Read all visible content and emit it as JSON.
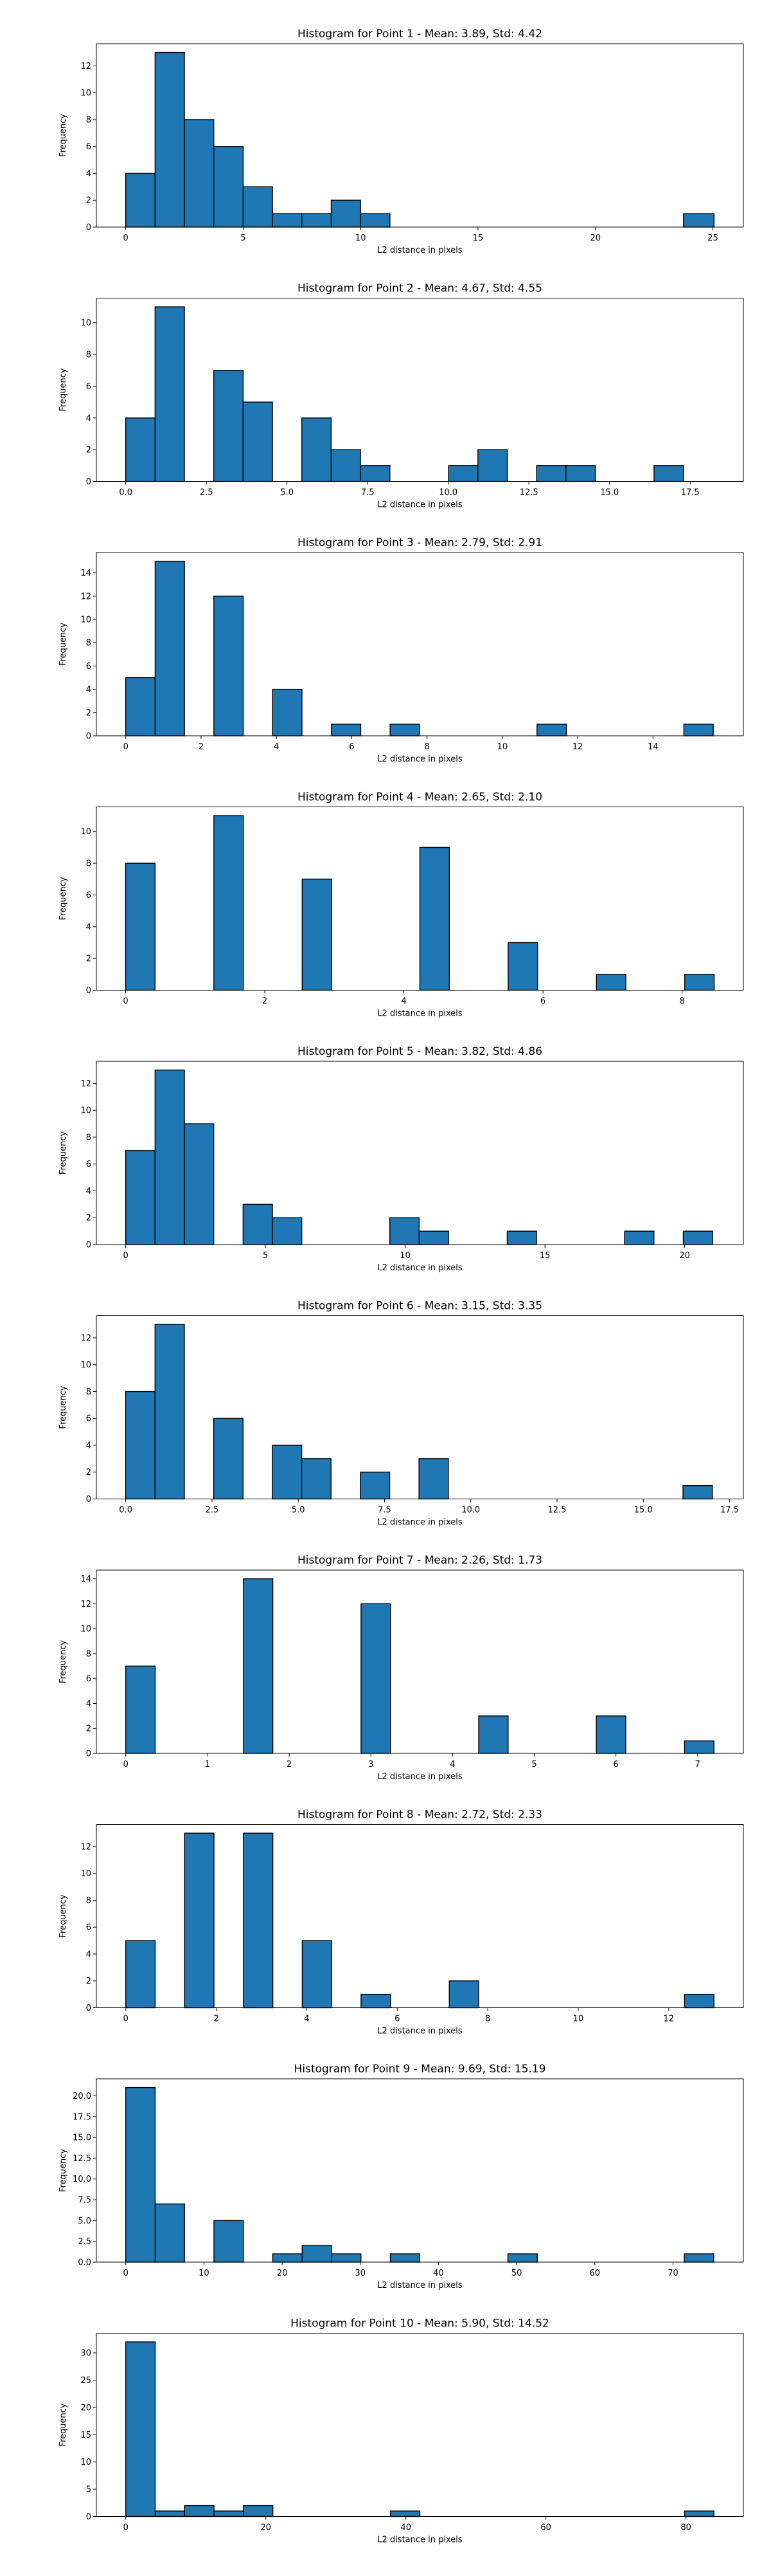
{
  "page": {
    "background": "#ffffff"
  },
  "chart_data": [
    {
      "type": "bar",
      "title": "Histogram for Point 1 - Mean: 3.89, Std: 4.42",
      "xlabel": "L2 distance in pixels",
      "ylabel": "Frequency",
      "bar_color": "#1f77b4",
      "xlim": [
        -1.25,
        26.3
      ],
      "ylim": [
        0,
        13.65
      ],
      "x_ticks": [
        0,
        5,
        10,
        15,
        20,
        25
      ],
      "y_ticks": [
        0,
        2,
        4,
        6,
        8,
        10,
        12
      ],
      "bin_edges": [
        0,
        1.25,
        2.5,
        3.75,
        5,
        6.25,
        7.5,
        8.75,
        10,
        11.25,
        12.5,
        13.75,
        15,
        16.25,
        17.5,
        18.75,
        20,
        21.25,
        22.5,
        23.75,
        25.05
      ],
      "values": [
        4,
        13,
        8,
        6,
        3,
        1,
        1,
        2,
        1,
        0,
        0,
        0,
        0,
        0,
        0,
        0,
        0,
        0,
        0,
        1
      ]
    },
    {
      "type": "bar",
      "title": "Histogram for Point 2 - Mean: 4.67, Std: 4.55",
      "xlabel": "L2 distance in pixels",
      "ylabel": "Frequency",
      "bar_color": "#1f77b4",
      "xlim": [
        -0.91,
        19.15
      ],
      "ylim": [
        0,
        11.55
      ],
      "x_ticks": [
        0.0,
        2.5,
        5.0,
        7.5,
        10.0,
        12.5,
        15.0,
        17.5
      ],
      "y_ticks": [
        0,
        2,
        4,
        6,
        8,
        10
      ],
      "bin_edges": [
        0,
        0.91,
        1.82,
        2.73,
        3.64,
        4.55,
        5.46,
        6.37,
        7.28,
        8.19,
        9.1,
        10.01,
        10.92,
        11.83,
        12.74,
        13.65,
        14.56,
        15.47,
        16.38,
        17.29,
        18.2
      ],
      "values": [
        4,
        11,
        0,
        7,
        5,
        0,
        4,
        2,
        1,
        0,
        0,
        1,
        2,
        0,
        1,
        1,
        0,
        0,
        1,
        0
      ]
    },
    {
      "type": "bar",
      "title": "Histogram for Point 3 - Mean: 2.79, Std: 2.91",
      "xlabel": "L2 distance in pixels",
      "ylabel": "Frequency",
      "bar_color": "#1f77b4",
      "xlim": [
        -0.78,
        16.4
      ],
      "ylim": [
        0,
        15.75
      ],
      "x_ticks": [
        0,
        2,
        4,
        6,
        8,
        10,
        12,
        14
      ],
      "y_ticks": [
        0,
        2,
        4,
        6,
        8,
        10,
        12,
        14
      ],
      "bin_edges": [
        0,
        0.78,
        1.56,
        2.34,
        3.12,
        3.9,
        4.68,
        5.46,
        6.24,
        7.02,
        7.8,
        8.58,
        9.36,
        10.14,
        10.92,
        11.7,
        12.48,
        13.26,
        14.04,
        14.82,
        15.6
      ],
      "values": [
        5,
        15,
        0,
        12,
        0,
        4,
        0,
        1,
        0,
        1,
        0,
        0,
        0,
        0,
        1,
        0,
        0,
        0,
        0,
        1
      ]
    },
    {
      "type": "bar",
      "title": "Histogram for Point 4 - Mean: 2.65, Std: 2.10",
      "xlabel": "L2 distance in pixels",
      "ylabel": "Frequency",
      "bar_color": "#1f77b4",
      "xlim": [
        -0.42,
        8.88
      ],
      "ylim": [
        0,
        11.55
      ],
      "x_ticks": [
        0,
        2,
        4,
        6,
        8
      ],
      "y_ticks": [
        0,
        2,
        4,
        6,
        8,
        10
      ],
      "bin_edges": [
        0,
        0.423,
        0.846,
        1.269,
        1.692,
        2.115,
        2.538,
        2.961,
        3.384,
        3.807,
        4.23,
        4.653,
        5.076,
        5.499,
        5.922,
        6.345,
        6.768,
        7.191,
        7.614,
        8.037,
        8.46
      ],
      "values": [
        8,
        0,
        0,
        11,
        0,
        0,
        7,
        0,
        0,
        0,
        9,
        0,
        0,
        3,
        0,
        0,
        1,
        0,
        0,
        1
      ]
    },
    {
      "type": "bar",
      "title": "Histogram for Point 5 - Mean: 3.82, Std: 4.86",
      "xlabel": "L2 distance in pixels",
      "ylabel": "Frequency",
      "bar_color": "#1f77b4",
      "xlim": [
        -1.05,
        22.1
      ],
      "ylim": [
        0,
        13.65
      ],
      "x_ticks": [
        0,
        5,
        10,
        15,
        20
      ],
      "y_ticks": [
        0,
        2,
        4,
        6,
        8,
        10,
        12
      ],
      "bin_edges": [
        0,
        1.05,
        2.1,
        3.15,
        4.2,
        5.25,
        6.3,
        7.35,
        8.4,
        9.45,
        10.5,
        11.55,
        12.6,
        13.65,
        14.7,
        15.75,
        16.8,
        17.85,
        18.9,
        19.95,
        21.0
      ],
      "values": [
        7,
        13,
        9,
        0,
        3,
        2,
        0,
        0,
        0,
        2,
        1,
        0,
        0,
        1,
        0,
        0,
        0,
        1,
        0,
        1
      ]
    },
    {
      "type": "bar",
      "title": "Histogram for Point 6 - Mean: 3.15, Std: 3.35",
      "xlabel": "L2 distance in pixels",
      "ylabel": "Frequency",
      "bar_color": "#1f77b4",
      "xlim": [
        -0.85,
        17.9
      ],
      "ylim": [
        0,
        13.65
      ],
      "x_ticks": [
        0.0,
        2.5,
        5.0,
        7.5,
        10.0,
        12.5,
        15.0,
        17.5
      ],
      "y_ticks": [
        0,
        2,
        4,
        6,
        8,
        10,
        12
      ],
      "bin_edges": [
        0,
        0.85,
        1.7,
        2.55,
        3.4,
        4.25,
        5.1,
        5.95,
        6.8,
        7.65,
        8.5,
        9.35,
        10.2,
        11.05,
        11.9,
        12.75,
        13.6,
        14.45,
        15.3,
        16.15,
        17.0
      ],
      "values": [
        8,
        13,
        0,
        6,
        0,
        4,
        3,
        0,
        2,
        0,
        3,
        0,
        0,
        0,
        0,
        0,
        0,
        0,
        0,
        1
      ]
    },
    {
      "type": "bar",
      "title": "Histogram for Point 7 - Mean: 2.26, Std: 1.73",
      "xlabel": "L2 distance in pixels",
      "ylabel": "Frequency",
      "bar_color": "#1f77b4",
      "xlim": [
        -0.36,
        7.56
      ],
      "ylim": [
        0,
        14.7
      ],
      "x_ticks": [
        0,
        1,
        2,
        3,
        4,
        5,
        6,
        7
      ],
      "y_ticks": [
        0,
        2,
        4,
        6,
        8,
        10,
        12,
        14
      ],
      "bin_edges": [
        0,
        0.36,
        0.72,
        1.08,
        1.44,
        1.8,
        2.16,
        2.52,
        2.88,
        3.24,
        3.6,
        3.96,
        4.32,
        4.68,
        5.04,
        5.4,
        5.76,
        6.12,
        6.48,
        6.84,
        7.2
      ],
      "values": [
        7,
        0,
        0,
        0,
        14,
        0,
        0,
        0,
        12,
        0,
        0,
        0,
        3,
        0,
        0,
        0,
        3,
        0,
        0,
        1
      ]
    },
    {
      "type": "bar",
      "title": "Histogram for Point 8 - Mean: 2.72, Std: 2.33",
      "xlabel": "L2 distance in pixels",
      "ylabel": "Frequency",
      "bar_color": "#1f77b4",
      "xlim": [
        -0.65,
        13.65
      ],
      "ylim": [
        0,
        13.65
      ],
      "x_ticks": [
        0,
        2,
        4,
        6,
        8,
        10,
        12
      ],
      "y_ticks": [
        0,
        2,
        4,
        6,
        8,
        10,
        12
      ],
      "bin_edges": [
        0,
        0.65,
        1.3,
        1.95,
        2.6,
        3.25,
        3.9,
        4.55,
        5.2,
        5.85,
        6.5,
        7.15,
        7.8,
        8.45,
        9.1,
        9.75,
        10.4,
        11.05,
        11.7,
        12.35,
        13.0
      ],
      "values": [
        5,
        0,
        13,
        0,
        13,
        0,
        5,
        0,
        1,
        0,
        0,
        2,
        0,
        0,
        0,
        0,
        0,
        0,
        0,
        1
      ]
    },
    {
      "type": "bar",
      "title": "Histogram for Point 9 - Mean: 9.69, Std: 15.19",
      "xlabel": "L2 distance in pixels",
      "ylabel": "Frequency",
      "bar_color": "#1f77b4",
      "xlim": [
        -3.76,
        79.0
      ],
      "ylim": [
        0,
        22.05
      ],
      "x_ticks": [
        0,
        10,
        20,
        30,
        40,
        50,
        60,
        70
      ],
      "y_ticks": [
        0.0,
        2.5,
        5.0,
        7.5,
        10.0,
        12.5,
        15.0,
        17.5,
        20.0
      ],
      "bin_edges": [
        0,
        3.76,
        7.52,
        11.28,
        15.04,
        18.8,
        22.56,
        26.32,
        30.08,
        33.84,
        37.6,
        41.36,
        45.12,
        48.88,
        52.64,
        56.4,
        60.16,
        63.92,
        67.68,
        71.44,
        75.2
      ],
      "values": [
        21,
        7,
        0,
        5,
        0,
        1,
        2,
        1,
        0,
        1,
        0,
        0,
        0,
        1,
        0,
        0,
        0,
        0,
        0,
        1
      ]
    },
    {
      "type": "bar",
      "title": "Histogram for Point 10 - Mean: 5.90, Std: 14.52",
      "xlabel": "L2 distance in pixels",
      "ylabel": "Frequency",
      "bar_color": "#1f77b4",
      "xlim": [
        -4.2,
        88.2
      ],
      "ylim": [
        0,
        33.6
      ],
      "x_ticks": [
        0,
        20,
        40,
        60,
        80
      ],
      "y_ticks": [
        0,
        5,
        10,
        15,
        20,
        25,
        30
      ],
      "bin_edges": [
        0,
        4.2,
        8.4,
        12.6,
        16.8,
        21.0,
        25.2,
        29.4,
        33.6,
        37.8,
        42.0,
        46.2,
        50.4,
        54.6,
        58.8,
        63.0,
        67.2,
        71.4,
        75.6,
        79.8,
        84.0
      ],
      "values": [
        32,
        1,
        2,
        1,
        2,
        0,
        0,
        0,
        0,
        1,
        0,
        0,
        0,
        0,
        0,
        0,
        0,
        0,
        0,
        1
      ]
    }
  ]
}
